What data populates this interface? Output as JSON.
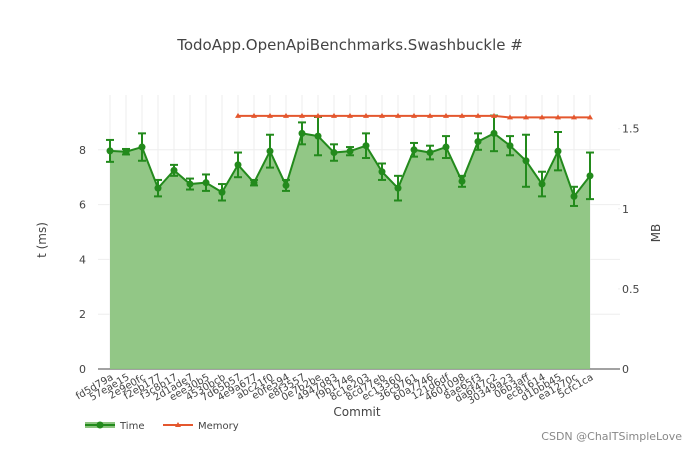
{
  "chart_data": {
    "type": "line",
    "title": "TodoApp.OpenApiBenchmarks.Swashbuckle #",
    "x_label": "Commit",
    "y_label": "t (ms)",
    "y2_label": "MB",
    "categories": [
      "fd5d79a",
      "57eae15",
      "2e9e0fc",
      "f2eb177",
      "f3c8b17",
      "2d1ade7",
      "eee30b5",
      "4530bcb",
      "7d65b57",
      "4e9a677",
      "abc21f0",
      "e0fe594",
      "e8f3557",
      "0e7b2be",
      "4947d83",
      "f9b174e",
      "8c1e203",
      "8cd77eb",
      "ec13360",
      "36c9761",
      "60a7746",
      "121d6df",
      "4601098",
      "8ae65f3",
      "da6f47c2",
      "30349a23",
      "06b3aff",
      "ec81614",
      "d1bbb45",
      "ea1270c",
      "5cfc1ca"
    ],
    "ylim": [
      0,
      10
    ],
    "yticks": [
      0,
      2,
      4,
      6,
      8
    ],
    "y2lim": [
      0,
      1.71
    ],
    "y2ticks": [
      0,
      0.5,
      1,
      1.5
    ],
    "grid": true,
    "legend": "bottom-left",
    "series": [
      {
        "name": "Time",
        "color": "#238a1c",
        "fill_color": "#8cc47f",
        "values": [
          7.96,
          7.93,
          8.1,
          6.6,
          7.25,
          6.75,
          6.8,
          6.45,
          7.45,
          6.8,
          7.95,
          6.7,
          8.6,
          8.5,
          7.9,
          7.95,
          8.15,
          7.2,
          6.6,
          8.0,
          7.9,
          8.1,
          6.85,
          8.3,
          8.6,
          8.15,
          7.6,
          6.75,
          7.95,
          6.3,
          7.05
        ],
        "errors": [
          0.4,
          0.1,
          0.5,
          0.3,
          0.2,
          0.2,
          0.3,
          0.3,
          0.45,
          0.1,
          0.6,
          0.2,
          0.4,
          0.7,
          0.3,
          0.15,
          0.45,
          0.3,
          0.45,
          0.25,
          0.25,
          0.4,
          0.2,
          0.3,
          0.65,
          0.35,
          0.95,
          0.45,
          0.7,
          0.35,
          0.85
        ]
      },
      {
        "name": "Memory",
        "color": "#e4572e",
        "axis": "y2",
        "values": [
          null,
          null,
          null,
          null,
          null,
          null,
          null,
          null,
          1.58,
          1.58,
          1.58,
          1.58,
          1.58,
          1.58,
          1.58,
          1.58,
          1.58,
          1.58,
          1.58,
          1.58,
          1.58,
          1.58,
          1.58,
          1.58,
          1.58,
          1.57,
          1.57,
          1.57,
          1.57,
          1.57,
          1.57
        ]
      }
    ]
  },
  "watermark": "CSDN @ChaITSimpleLove"
}
